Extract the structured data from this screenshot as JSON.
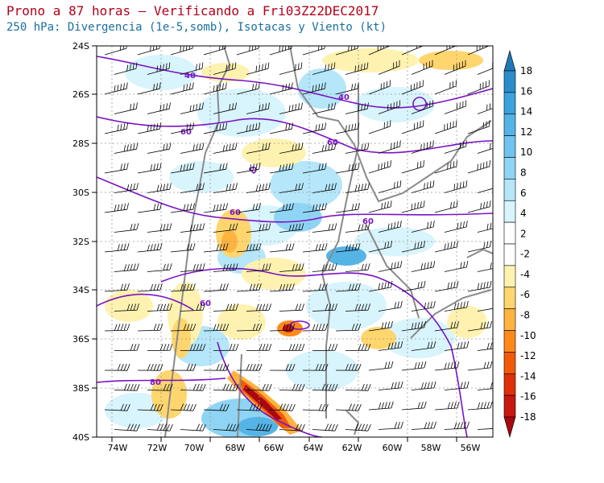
{
  "title": "Prono a 87 horas — Verificando a Fri03Z22DEC2017",
  "subtitle": "250 hPa: Divergencia (1e-5,somb), Isotacas y Viento (kt)",
  "lat_ticks": [
    "24S",
    "26S",
    "28S",
    "30S",
    "32S",
    "34S",
    "36S",
    "38S",
    "40S"
  ],
  "lon_ticks": [
    "74W",
    "72W",
    "70W",
    "68W",
    "66W",
    "64W",
    "62W",
    "60W",
    "58W",
    "56W"
  ],
  "colorbar": {
    "labels": [
      "18",
      "16",
      "14",
      "12",
      "10",
      "8",
      "6",
      "4",
      "2",
      "-2",
      "-4",
      "-6",
      "-8",
      "-10",
      "-12",
      "-14",
      "-16",
      "-18"
    ],
    "colors": [
      "#1e78b4",
      "#2b8ccc",
      "#3ba2dd",
      "#55b4e6",
      "#6ec4ee",
      "#8fd4f4",
      "#b5e6fa",
      "#d8f4fd",
      "#ffffff",
      "#ffffff",
      "#fff2b0",
      "#ffd66e",
      "#ffb340",
      "#ff8a1a",
      "#f25a0a",
      "#e0300a",
      "#c81812",
      "#a8080f"
    ]
  },
  "isotach_labels": [
    "40",
    "40",
    "60",
    "60",
    "60",
    "60",
    "60",
    "80"
  ],
  "map_colors": {
    "isotach": "#7a12c4",
    "coast": "#8a8a8a",
    "barb": "#000000"
  }
}
